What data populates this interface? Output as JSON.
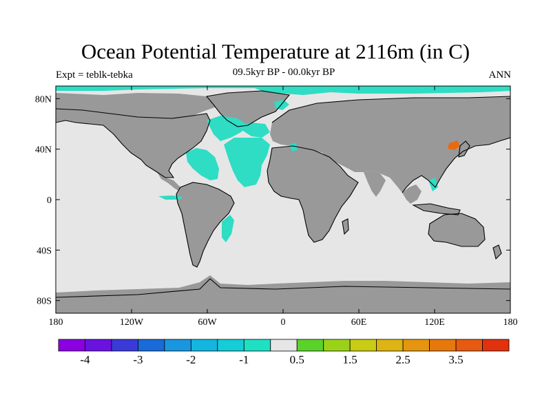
{
  "title": "Ocean Potential Temperature at 2116m (in C)",
  "left_label": "Expt = teblk-tebka",
  "center_label": "09.5kyr BP - 00.0kyr BP",
  "right_label": "ANN",
  "colors": {
    "land": "#999999",
    "near_zero": "#e6e6e6",
    "cold_anomaly": "#2fdcc4",
    "warm_anomaly": "#e86a10",
    "coast": "#000000"
  },
  "map": {
    "projection": "cylindrical-equidistant",
    "lon_range": [
      -180,
      180
    ],
    "lat_range": [
      -90,
      90
    ],
    "x_ticks": [
      {
        "value": -180,
        "label": "180"
      },
      {
        "value": -120,
        "label": "120W"
      },
      {
        "value": -60,
        "label": "60W"
      },
      {
        "value": 0,
        "label": "0"
      },
      {
        "value": 60,
        "label": "60E"
      },
      {
        "value": 120,
        "label": "120E"
      },
      {
        "value": 180,
        "label": "180"
      }
    ],
    "y_ticks": [
      {
        "value": 80,
        "label": "80N"
      },
      {
        "value": 40,
        "label": "40N"
      },
      {
        "value": 0,
        "label": "0"
      },
      {
        "value": -40,
        "label": "40S"
      },
      {
        "value": -80,
        "label": "80S"
      }
    ]
  },
  "colorbar": {
    "colors": [
      "#8a00e0",
      "#6a12e0",
      "#3a3ad8",
      "#1a6ad8",
      "#1a96de",
      "#14b6e0",
      "#14cdd6",
      "#20e0c4",
      "#e6e6e6",
      "#5ad22a",
      "#9ad21a",
      "#c8cc14",
      "#deb414",
      "#e6960e",
      "#e6780e",
      "#e65a12",
      "#e0320e"
    ],
    "labels": [
      {
        "after": 1,
        "text": "-4"
      },
      {
        "after": 3,
        "text": "-3"
      },
      {
        "after": 5,
        "text": "-2"
      },
      {
        "after": 7,
        "text": "-1"
      },
      {
        "after": 9,
        "text": "0.5"
      },
      {
        "after": 11,
        "text": "1.5"
      },
      {
        "after": 13,
        "text": "2.5"
      },
      {
        "after": 15,
        "text": "3.5"
      }
    ]
  }
}
